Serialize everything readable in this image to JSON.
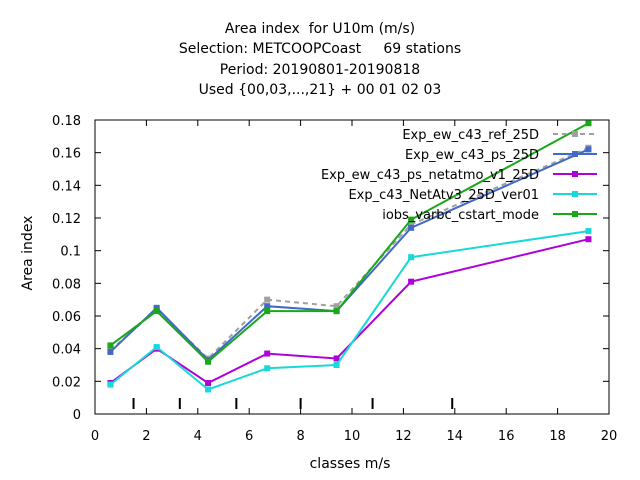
{
  "chart_data": {
    "type": "line",
    "title": [
      "Area index  for U10m (m/s)",
      "Selection: METCOOPCoast     69 stations",
      "Period: 20190801-20190818",
      "Used {00,03,...,21} + 00 01 02 03"
    ],
    "xlabel": "classes m/s",
    "ylabel": "Area index",
    "xlim": [
      0,
      20
    ],
    "ylim": [
      0,
      0.18
    ],
    "x_ticks": [
      0,
      2,
      4,
      6,
      8,
      10,
      12,
      14,
      16,
      18,
      20
    ],
    "y_ticks": [
      0,
      0.02,
      0.04,
      0.06,
      0.08,
      0.1,
      0.12,
      0.14,
      0.16,
      0.18
    ],
    "class_boundaries": [
      1.5,
      3.3,
      5.5,
      8.0,
      10.8,
      13.9
    ],
    "grid": false,
    "legend_position": "top-right",
    "series": [
      {
        "name": "Exp_ew_c43_ref_25D",
        "color": "#a0a0a0",
        "dashed": true,
        "x": [
          0.6,
          2.4,
          4.4,
          6.7,
          9.4,
          12.3,
          19.2
        ],
        "y": [
          0.039,
          0.064,
          0.034,
          0.07,
          0.066,
          0.116,
          0.163
        ]
      },
      {
        "name": "Exp_ew_c43_ps_25D",
        "color": "#4169c8",
        "dashed": false,
        "x": [
          0.6,
          2.4,
          4.4,
          6.7,
          9.4,
          12.3,
          19.2
        ],
        "y": [
          0.038,
          0.065,
          0.033,
          0.066,
          0.063,
          0.114,
          0.162
        ]
      },
      {
        "name": "Exp_ew_c43_ps_netatmo_v1_25D",
        "color": "#b000d8",
        "dashed": false,
        "x": [
          0.6,
          2.4,
          4.4,
          6.7,
          9.4,
          12.3,
          19.2
        ],
        "y": [
          0.019,
          0.04,
          0.019,
          0.037,
          0.034,
          0.081,
          0.107
        ]
      },
      {
        "name": "Exp_c43_NetAtv3_25D_ver01",
        "color": "#18d8d8",
        "dashed": false,
        "x": [
          0.6,
          2.4,
          4.4,
          6.7,
          9.4,
          12.3,
          19.2
        ],
        "y": [
          0.018,
          0.041,
          0.015,
          0.028,
          0.03,
          0.096,
          0.112
        ]
      },
      {
        "name": "iobs_varbc_cstart_mode",
        "color": "#18a818",
        "dashed": false,
        "x": [
          0.6,
          2.4,
          4.4,
          6.7,
          9.4,
          12.3,
          19.2
        ],
        "y": [
          0.042,
          0.063,
          0.032,
          0.063,
          0.063,
          0.119,
          0.178
        ]
      }
    ]
  }
}
